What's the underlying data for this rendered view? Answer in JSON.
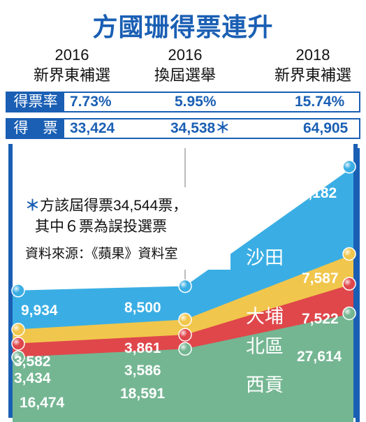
{
  "title": "方國珊得票連升",
  "columns": [
    {
      "year": "2016",
      "name": "新界東補選"
    },
    {
      "year": "2016",
      "name": "換屆選舉"
    },
    {
      "year": "2018",
      "name": "新界東補選"
    }
  ],
  "rows": {
    "rate_label": "得票率",
    "rates": [
      "7.73%",
      "5.95%",
      "15.74%"
    ],
    "votes_label": "得　票",
    "votes": [
      "33,424",
      "34,538",
      "64,905"
    ],
    "votes_mark": "＊"
  },
  "note": {
    "asterisk": "＊",
    "line1": "方該屆得票34,544票，",
    "line2": "其中６票為誤投選票",
    "source": "資料來源：《蘋果》資料室"
  },
  "colors": {
    "accent": "#1a5fb4",
    "shatin": "#3aaee4",
    "taipo": "#f1c64c",
    "north": "#df474b",
    "saikung": "#74b692"
  },
  "chart_data": {
    "type": "area",
    "stacked": true,
    "categories": [
      "2016 新界東補選",
      "2016 換屆選舉",
      "2018 新界東補選"
    ],
    "series": [
      {
        "name": "西貢",
        "values": [
          16474,
          18591,
          27614
        ],
        "labels": [
          "16,474",
          "18,591",
          "27,614"
        ],
        "color": "#74b692"
      },
      {
        "name": "北區",
        "values": [
          3434,
          3586,
          7522
        ],
        "labels": [
          "3,434",
          "3,586",
          "7,522"
        ],
        "color": "#df474b"
      },
      {
        "name": "大埔",
        "values": [
          3582,
          3861,
          7587
        ],
        "labels": [
          "3,582",
          "3,861",
          "7,587"
        ],
        "color": "#f1c64c"
      },
      {
        "name": "沙田",
        "values": [
          9934,
          8500,
          22182
        ],
        "labels": [
          "9,934",
          "8,500",
          "22,182"
        ],
        "color": "#3aaee4"
      }
    ]
  }
}
